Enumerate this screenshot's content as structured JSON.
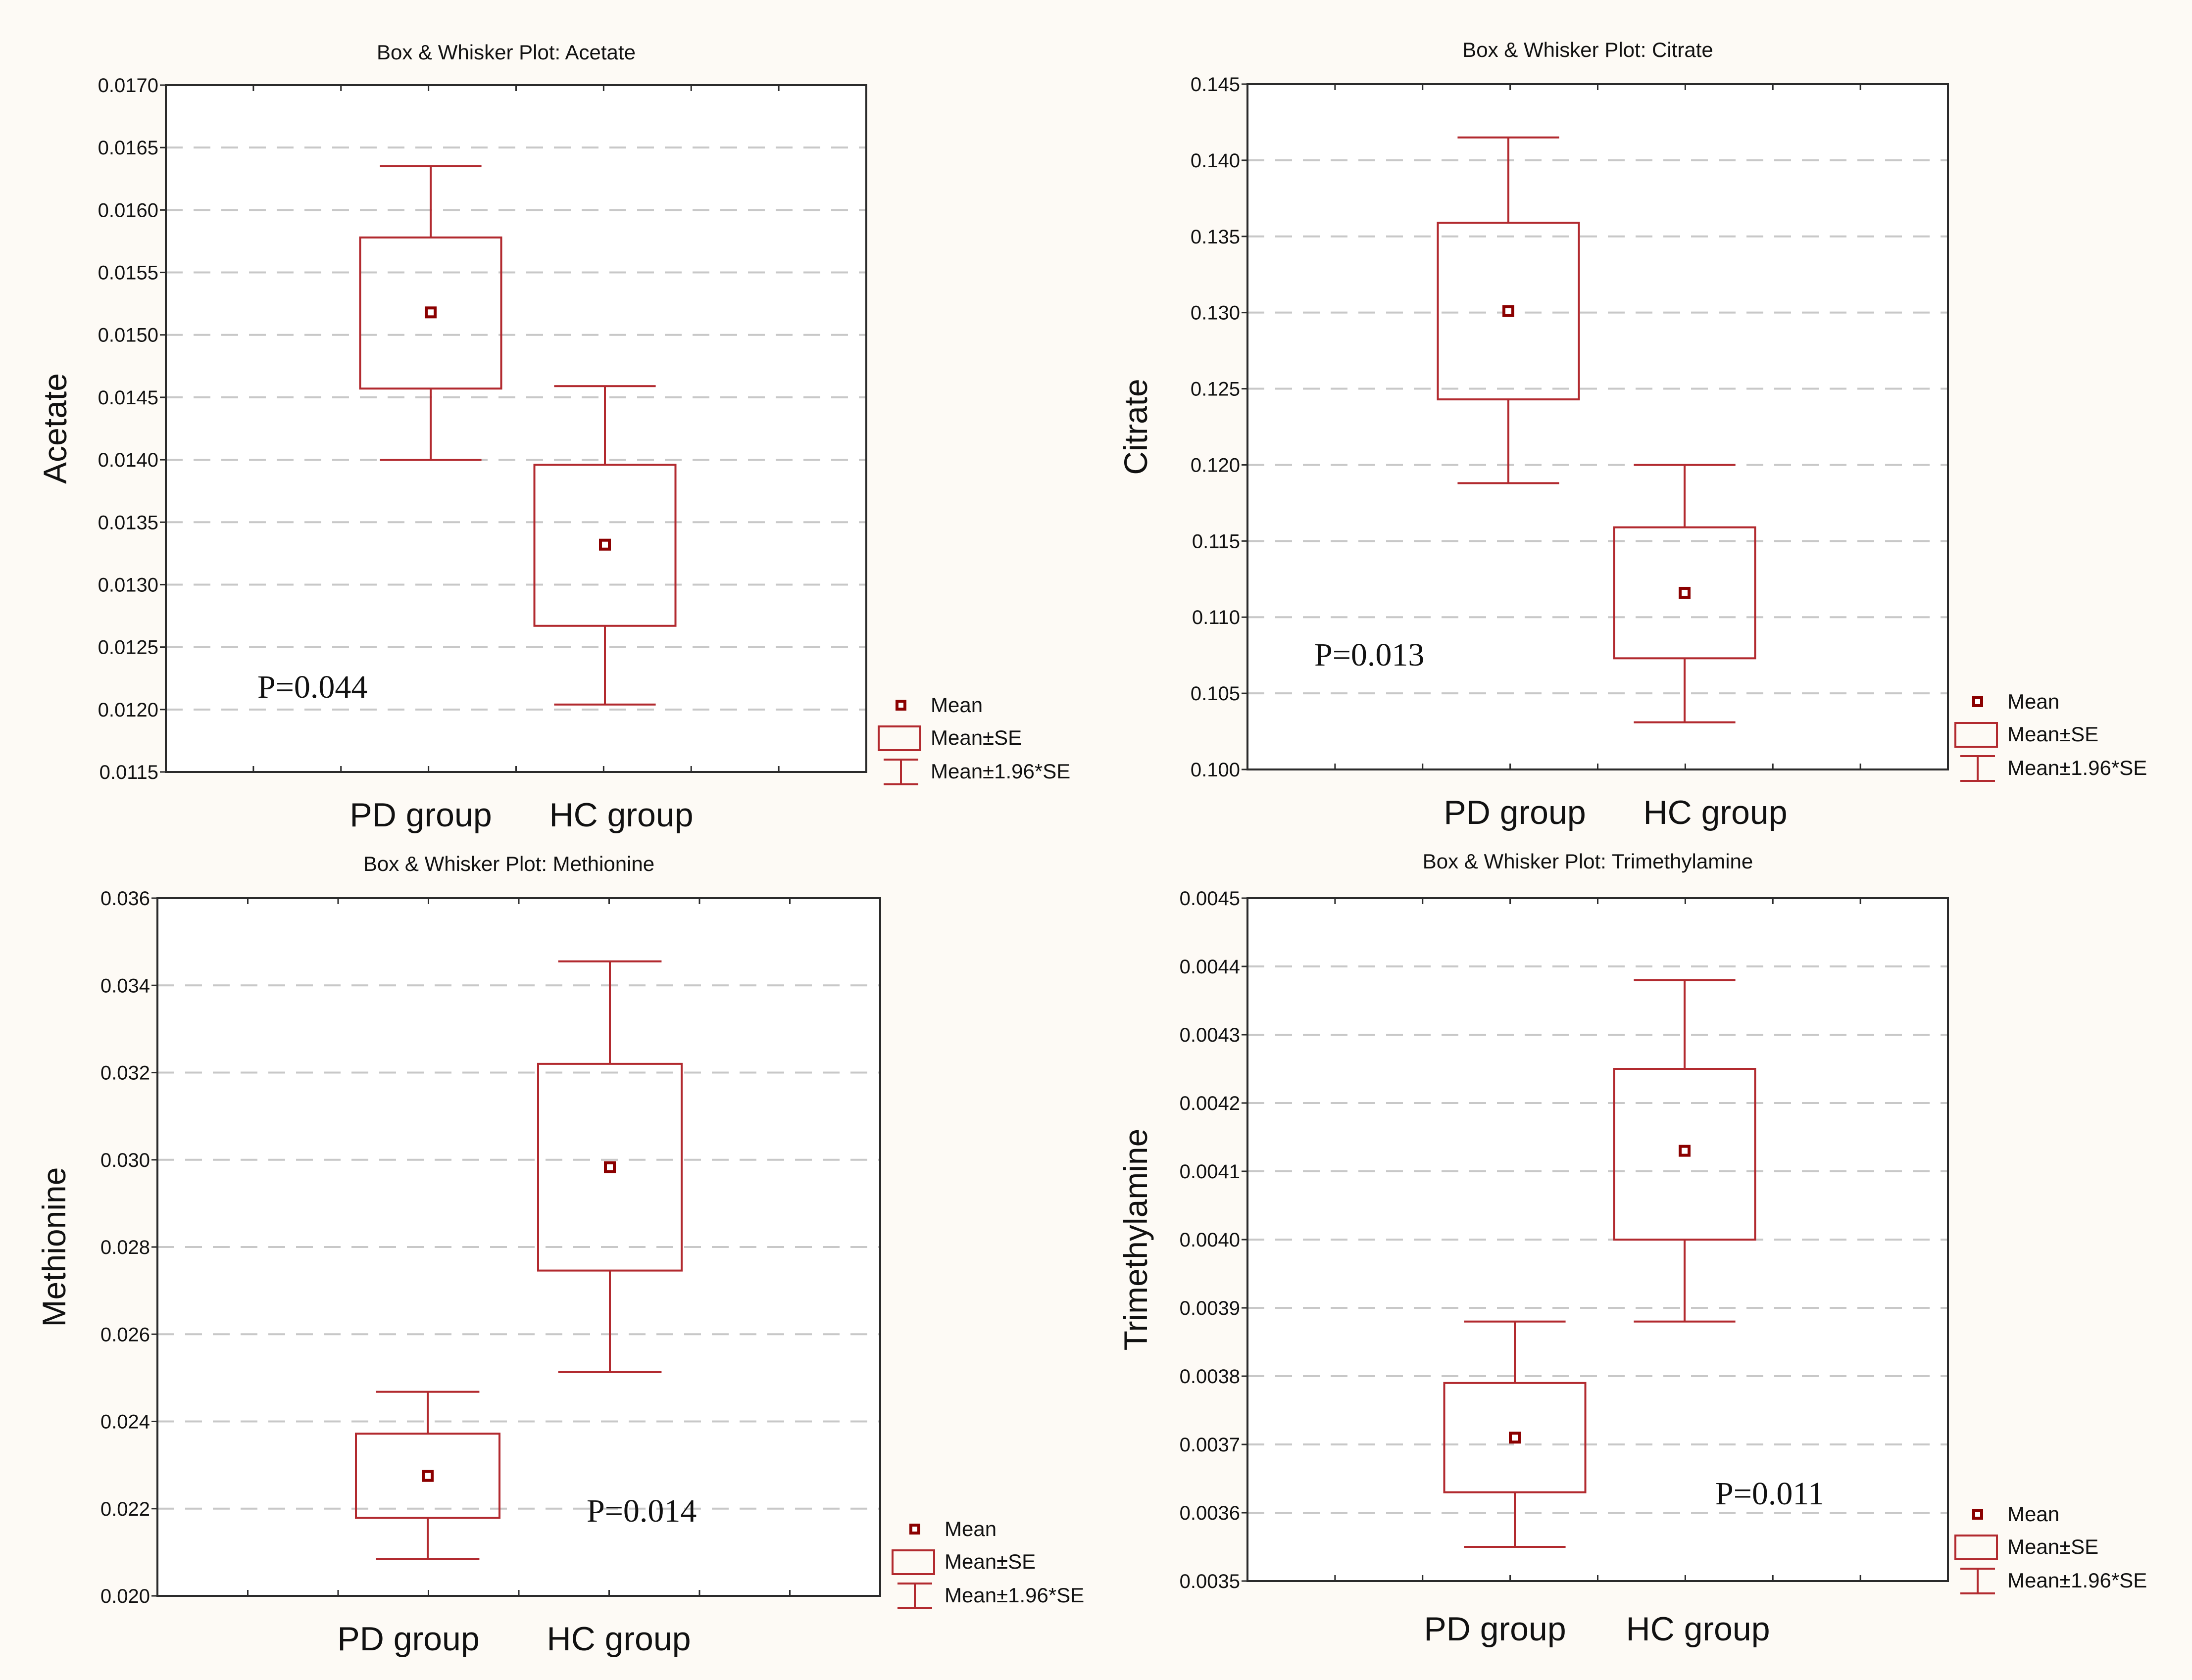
{
  "colors": {
    "background": "#fdfaf5",
    "plot_background": "#ffffff",
    "frame": "#2b2b2b",
    "grid": "#c8c8c8",
    "series": "#b22a2f",
    "marker_fill": "#8b0000",
    "text": "#111111"
  },
  "legend": {
    "mean": "Mean",
    "mean_se": "Mean±SE",
    "mean_196se": "Mean±1.96*SE"
  },
  "chart_data": [
    {
      "type": "box",
      "title": "Box & Whisker Plot:  Acetate",
      "ylabel": "Acetate",
      "xlabel": "",
      "grid": true,
      "legend_position": "right-bottom",
      "ylim": [
        0.0115,
        0.017
      ],
      "yticks": [
        "0.0115",
        "0.0120",
        "0.0125",
        "0.0130",
        "0.0135",
        "0.0140",
        "0.0145",
        "0.0150",
        "0.0155",
        "0.0160",
        "0.0165",
        "0.0170"
      ],
      "categories": [
        "PD group",
        "HC group"
      ],
      "mean": [
        0.01518,
        0.01332
      ],
      "se_low": [
        0.01457,
        0.01267
      ],
      "se_high": [
        0.01578,
        0.01396
      ],
      "ci_low": [
        0.014,
        0.01204
      ],
      "ci_high": [
        0.01635,
        0.01459
      ],
      "annotation": "P=0.044"
    },
    {
      "type": "box",
      "title": "Box & Whisker Plot:  Citrate",
      "ylabel": "Citrate",
      "xlabel": "",
      "grid": true,
      "legend_position": "right-bottom",
      "ylim": [
        0.1,
        0.145
      ],
      "yticks": [
        "0.100",
        "0.105",
        "0.110",
        "0.115",
        "0.120",
        "0.125",
        "0.130",
        "0.135",
        "0.140",
        "0.145"
      ],
      "categories": [
        "PD group",
        "HC group"
      ],
      "mean": [
        0.1301,
        0.1116
      ],
      "se_low": [
        0.1243,
        0.1073
      ],
      "se_high": [
        0.1359,
        0.1159
      ],
      "ci_low": [
        0.1188,
        0.1031
      ],
      "ci_high": [
        0.1415,
        0.12
      ],
      "annotation": "P=0.013"
    },
    {
      "type": "box",
      "title": "Box & Whisker Plot: Methionine",
      "ylabel": "Methionine",
      "xlabel": "",
      "grid": true,
      "legend_position": "right-bottom",
      "ylim": [
        0.02,
        0.036
      ],
      "yticks": [
        "0.020",
        "0.022",
        "0.024",
        "0.026",
        "0.028",
        "0.030",
        "0.032",
        "0.034",
        "0.036"
      ],
      "categories": [
        "PD group",
        "HC group"
      ],
      "mean": [
        0.02275,
        0.02983
      ],
      "se_low": [
        0.02179,
        0.02746
      ],
      "se_high": [
        0.02372,
        0.0322
      ],
      "ci_low": [
        0.02085,
        0.02513
      ],
      "ci_high": [
        0.02468,
        0.03455
      ],
      "annotation": "P=0.014"
    },
    {
      "type": "box",
      "title": "Box & Whisker Plot: Trimethylamine",
      "ylabel": "Trimethylamine",
      "xlabel": "",
      "grid": true,
      "legend_position": "right-bottom",
      "ylim": [
        0.0035,
        0.0045
      ],
      "yticks": [
        "0.0035",
        "0.0036",
        "0.0037",
        "0.0038",
        "0.0039",
        "0.0040",
        "0.0041",
        "0.0042",
        "0.0043",
        "0.0044",
        "0.0045"
      ],
      "categories": [
        "PD group",
        "HC group"
      ],
      "mean": [
        0.00371,
        0.00413
      ],
      "se_low": [
        0.00363,
        0.004
      ],
      "se_high": [
        0.00379,
        0.00425
      ],
      "ci_low": [
        0.00355,
        0.00388
      ],
      "ci_high": [
        0.00388,
        0.00438
      ],
      "annotation": "P=0.011"
    }
  ]
}
